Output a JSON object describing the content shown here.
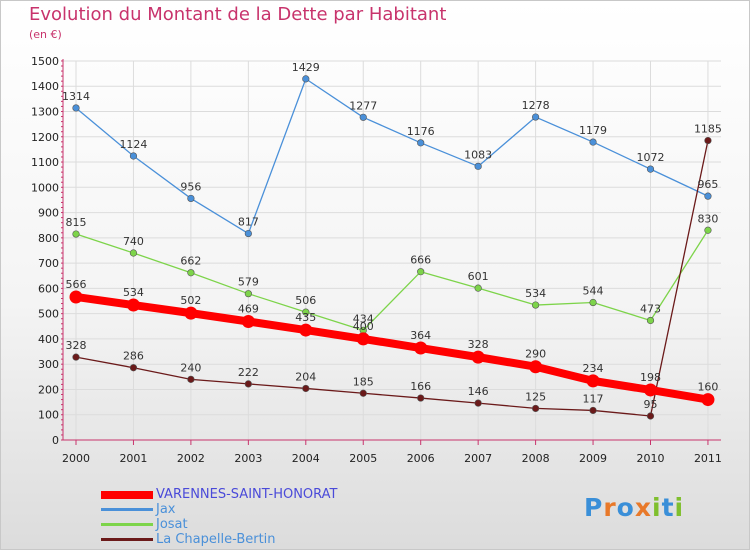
{
  "title": "Evolution du Montant de la Dette par Habitant",
  "unit": "(en €)",
  "logo": {
    "letters": [
      "P",
      "r",
      "o",
      "x",
      "i",
      "t",
      "i"
    ],
    "colors": [
      "#3a8fd8",
      "#e8792a",
      "#3a8fd8",
      "#e8792a",
      "#7fbf2e",
      "#3a8fd8",
      "#7fbf2e"
    ]
  },
  "colors": {
    "title": "#c8336c",
    "axis": "#c8336c",
    "grid": "#dcdcdc"
  },
  "chart_data": {
    "type": "line",
    "title": "Evolution du Montant de la Dette par Habitant",
    "ylabel": "(en €)",
    "xlabel": "",
    "x": [
      "2000",
      "2001",
      "2002",
      "2003",
      "2004",
      "2005",
      "2006",
      "2007",
      "2008",
      "2009",
      "2010",
      "2011"
    ],
    "ylim": [
      0,
      1500
    ],
    "yticks": [
      0,
      100,
      200,
      300,
      400,
      500,
      600,
      700,
      800,
      900,
      1000,
      1100,
      1200,
      1300,
      1400,
      1500
    ],
    "grid": true,
    "legend_position": "bottom-left",
    "series": [
      {
        "name": "VARENNES-SAINT-HONORAT",
        "color": "#ff0000",
        "values": [
          566,
          534,
          502,
          469,
          435,
          400,
          364,
          328,
          290,
          234,
          198,
          160
        ]
      },
      {
        "name": "Jax",
        "color": "#4a90d9",
        "values": [
          1314,
          1124,
          956,
          817,
          1429,
          1277,
          1176,
          1083,
          1278,
          1179,
          1072,
          965
        ]
      },
      {
        "name": "Josat",
        "color": "#7dd44a",
        "values": [
          815,
          740,
          662,
          579,
          506,
          434,
          666,
          601,
          534,
          544,
          473,
          830
        ]
      },
      {
        "name": "La Chapelle-Bertin",
        "color": "#6b1a1a",
        "values": [
          328,
          286,
          240,
          222,
          204,
          185,
          166,
          146,
          125,
          117,
          95,
          1185
        ]
      }
    ]
  }
}
